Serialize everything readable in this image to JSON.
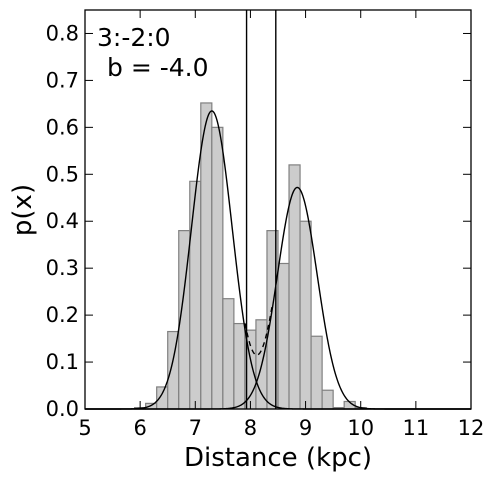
{
  "chart_data": {
    "type": "bar",
    "xlabel": "Distance (kpc)",
    "ylabel": "p(x)",
    "xlim": [
      5,
      12
    ],
    "ylim": [
      0,
      0.85
    ],
    "x_ticks": [
      5,
      6,
      7,
      8,
      9,
      10,
      11,
      12
    ],
    "y_ticks": [
      0.0,
      0.1,
      0.2,
      0.3,
      0.4,
      0.5,
      0.6,
      0.7,
      0.8
    ],
    "annotations": [
      "3:-2:0",
      "b = -4.0"
    ],
    "histogram": {
      "bin_width": 0.2,
      "bin_starts": [
        5.9,
        6.1,
        6.3,
        6.5,
        6.7,
        6.9,
        7.1,
        7.3,
        7.5,
        7.7,
        7.9,
        8.1,
        8.3,
        8.5,
        8.7,
        8.9,
        9.1,
        9.3,
        9.5,
        9.7,
        9.9,
        10.1
      ],
      "values": [
        0.003,
        0.012,
        0.047,
        0.165,
        0.38,
        0.485,
        0.652,
        0.6,
        0.235,
        0.182,
        0.168,
        0.19,
        0.38,
        0.31,
        0.52,
        0.4,
        0.155,
        0.04,
        0.003,
        0.016,
        0.003,
        0.0
      ],
      "fill_color": "#cccccc",
      "edge_color": "#808080"
    },
    "curves": [
      {
        "type": "gaussian",
        "mu": 7.3,
        "sigma": 0.37,
        "amplitude": 0.635,
        "style": "solid"
      },
      {
        "type": "gaussian",
        "mu": 8.85,
        "sigma": 0.36,
        "amplitude": 0.472,
        "style": "solid"
      },
      {
        "type": "mixture",
        "style": "dashed"
      }
    ],
    "vertical_lines": [
      7.93,
      8.46
    ],
    "grid": false
  }
}
